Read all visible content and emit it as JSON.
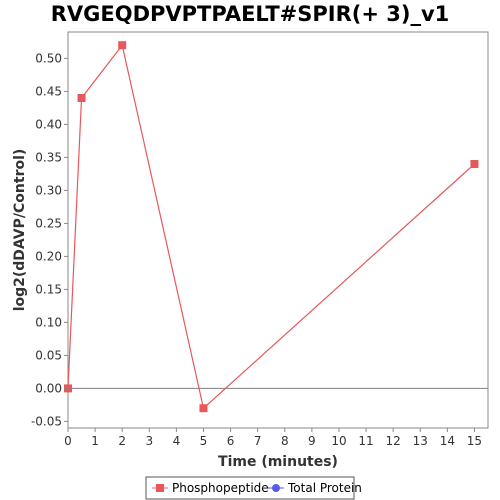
{
  "chart_data": {
    "type": "line",
    "title": "RVGEQDPVPTPAELT#SPIR(+ 3)_v1",
    "xlabel": "Time (minutes)",
    "ylabel": "log2(dDAVP/Control)",
    "xlim": [
      0,
      15.5
    ],
    "ylim": [
      -0.06,
      0.54
    ],
    "x_ticks": [
      0,
      1,
      2,
      3,
      4,
      5,
      6,
      7,
      8,
      9,
      10,
      11,
      12,
      13,
      14,
      15
    ],
    "y_ticks": [
      -0.05,
      0.0,
      0.05,
      0.1,
      0.15,
      0.2,
      0.25,
      0.3,
      0.35,
      0.4,
      0.45,
      0.5
    ],
    "y_tick_labels": [
      "-0.05",
      "0.00",
      "0.05",
      "0.10",
      "0.15",
      "0.20",
      "0.25",
      "0.30",
      "0.35",
      "0.40",
      "0.45",
      "0.50"
    ],
    "grid": false,
    "zero_line": true,
    "legend_position": "bottom-center",
    "series": [
      {
        "name": "Phosphopeptide",
        "color": "#e8585a",
        "marker": "square",
        "x": [
          0,
          0.5,
          2,
          5,
          15
        ],
        "values": [
          0.0,
          0.44,
          0.52,
          -0.03,
          0.34
        ]
      },
      {
        "name": "Total Protein",
        "color": "#5a5ae8",
        "marker": "circle",
        "x": [],
        "values": []
      }
    ]
  }
}
